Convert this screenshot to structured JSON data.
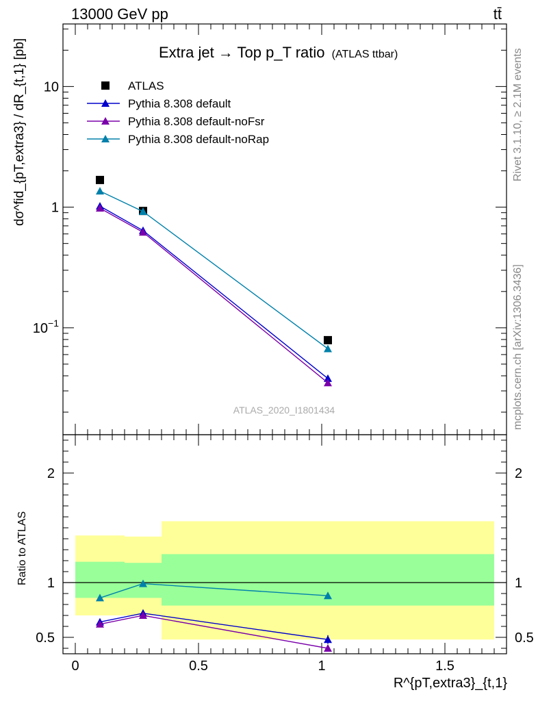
{
  "header": {
    "left_label": "13000 GeV pp",
    "right_label": "tt̄"
  },
  "side_labels": {
    "rivet": "Rivet 3.1.10, ≥ 2.1M events",
    "mcplots": "mcplots.cern.ch [arXiv:1306.3436]"
  },
  "colors": {
    "atlas": "#000000",
    "default": "#0000cc",
    "noFsr": "#7a00aa",
    "noRap": "#0080aa",
    "band_outer": "#ffff99",
    "band_inner": "#99ff99"
  },
  "chart_data": [
    {
      "type": "line",
      "title": "Extra jet → Top p_T ratio",
      "title_suffix": "(ATLAS ttbar)",
      "ylabel": "dσ^fid_{pT,extra3} / dR_{t,1} [pb]",
      "xlabel": "",
      "log_y": true,
      "ylim": [
        0.013,
        33
      ],
      "xlim": [
        -0.05,
        1.75
      ],
      "y_tick_labels": [
        "10^−1",
        "1",
        "10"
      ],
      "y_tick_values": [
        0.1,
        1,
        10
      ],
      "watermark": "ATLAS_2020_I1801434",
      "legend_position": "top-left",
      "x": [
        0.1,
        0.275,
        1.025
      ],
      "series": [
        {
          "name": "ATLAS",
          "marker": "square",
          "values": [
            1.68,
            0.93,
            0.079
          ]
        },
        {
          "name": "Pythia 8.308 default",
          "marker": "triangle",
          "values": [
            1.02,
            0.64,
            0.038
          ]
        },
        {
          "name": "Pythia 8.308 default-noFsr",
          "marker": "triangle",
          "values": [
            0.98,
            0.62,
            0.035
          ]
        },
        {
          "name": "Pythia 8.308 default-noRap",
          "marker": "triangle",
          "values": [
            1.36,
            0.92,
            0.067
          ]
        }
      ]
    },
    {
      "type": "line",
      "ylabel": "Ratio to ATLAS",
      "xlabel": "R^{pT,extra3}_{t,1}",
      "ylim": [
        0.35,
        2.35
      ],
      "xlim": [
        -0.05,
        1.75
      ],
      "reference_line": 1.0,
      "y_tick_labels": [
        "0.5",
        "1",
        "2"
      ],
      "y_tick_values": [
        0.5,
        1,
        2
      ],
      "x_tick_labels": [
        "0",
        "0.5",
        "1",
        "1.5"
      ],
      "x_tick_values": [
        0,
        0.5,
        1,
        1.5
      ],
      "x": [
        0.1,
        0.275,
        1.025
      ],
      "bands": [
        {
          "x0": 0.0,
          "x1": 0.2,
          "outer": [
            0.7,
            1.43
          ],
          "inner": [
            0.86,
            1.19
          ]
        },
        {
          "x0": 0.2,
          "x1": 0.35,
          "outer": [
            0.7,
            1.42
          ],
          "inner": [
            0.86,
            1.18
          ]
        },
        {
          "x0": 0.35,
          "x1": 1.7,
          "outer": [
            0.48,
            1.56
          ],
          "inner": [
            0.79,
            1.26
          ]
        }
      ],
      "series": [
        {
          "name": "Pythia 8.308 default",
          "values": [
            0.64,
            0.72,
            0.48
          ],
          "errors": [
            0.02,
            0.03,
            0.04
          ]
        },
        {
          "name": "Pythia 8.308 default-noFsr",
          "values": [
            0.62,
            0.7,
            0.4
          ],
          "errors": [
            0.02,
            0.03,
            0.03
          ]
        },
        {
          "name": "Pythia 8.308 default-noRap",
          "values": [
            0.86,
            0.99,
            0.88
          ],
          "errors": [
            0.015,
            0.025,
            0.03
          ]
        }
      ]
    }
  ]
}
